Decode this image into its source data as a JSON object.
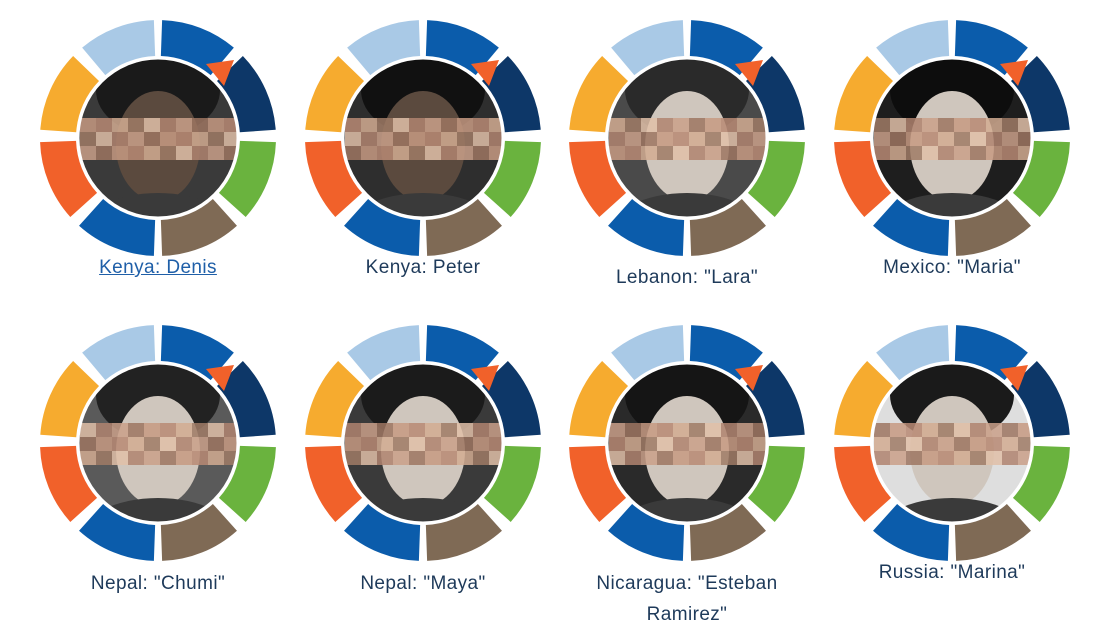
{
  "profiles": [
    {
      "label": "Kenya: Denis",
      "is_link": true,
      "icon": "portrait-photo-icon"
    },
    {
      "label": "Kenya: Peter",
      "is_link": false,
      "icon": "portrait-photo-icon"
    },
    {
      "label": "Lebanon: \"Lara\"",
      "is_link": false,
      "icon": "portrait-photo-icon"
    },
    {
      "label": "Mexico: \"Maria\"",
      "is_link": false,
      "icon": "portrait-photo-icon"
    },
    {
      "label": "Nepal: \"Chumi\"",
      "is_link": false,
      "icon": "portrait-photo-icon"
    },
    {
      "label": "Nepal: \"Maya\"",
      "is_link": false,
      "icon": "portrait-photo-icon"
    },
    {
      "label": "Nicaragua: \"Esteban Ramirez\"",
      "is_link": false,
      "icon": "portrait-photo-icon"
    },
    {
      "label": "Russia: \"Marina\"",
      "is_link": false,
      "icon": "portrait-photo-icon"
    }
  ],
  "colors": {
    "light_blue": "#a9c9e6",
    "mid_blue": "#0b5cab",
    "navy": "#0d3768",
    "orange": "#f1612a",
    "green": "#6ab33e",
    "brown": "#7f6a55",
    "yellow": "#f6ab2f",
    "link": "#1f5fa8",
    "label_text": "#1e3a5a"
  }
}
